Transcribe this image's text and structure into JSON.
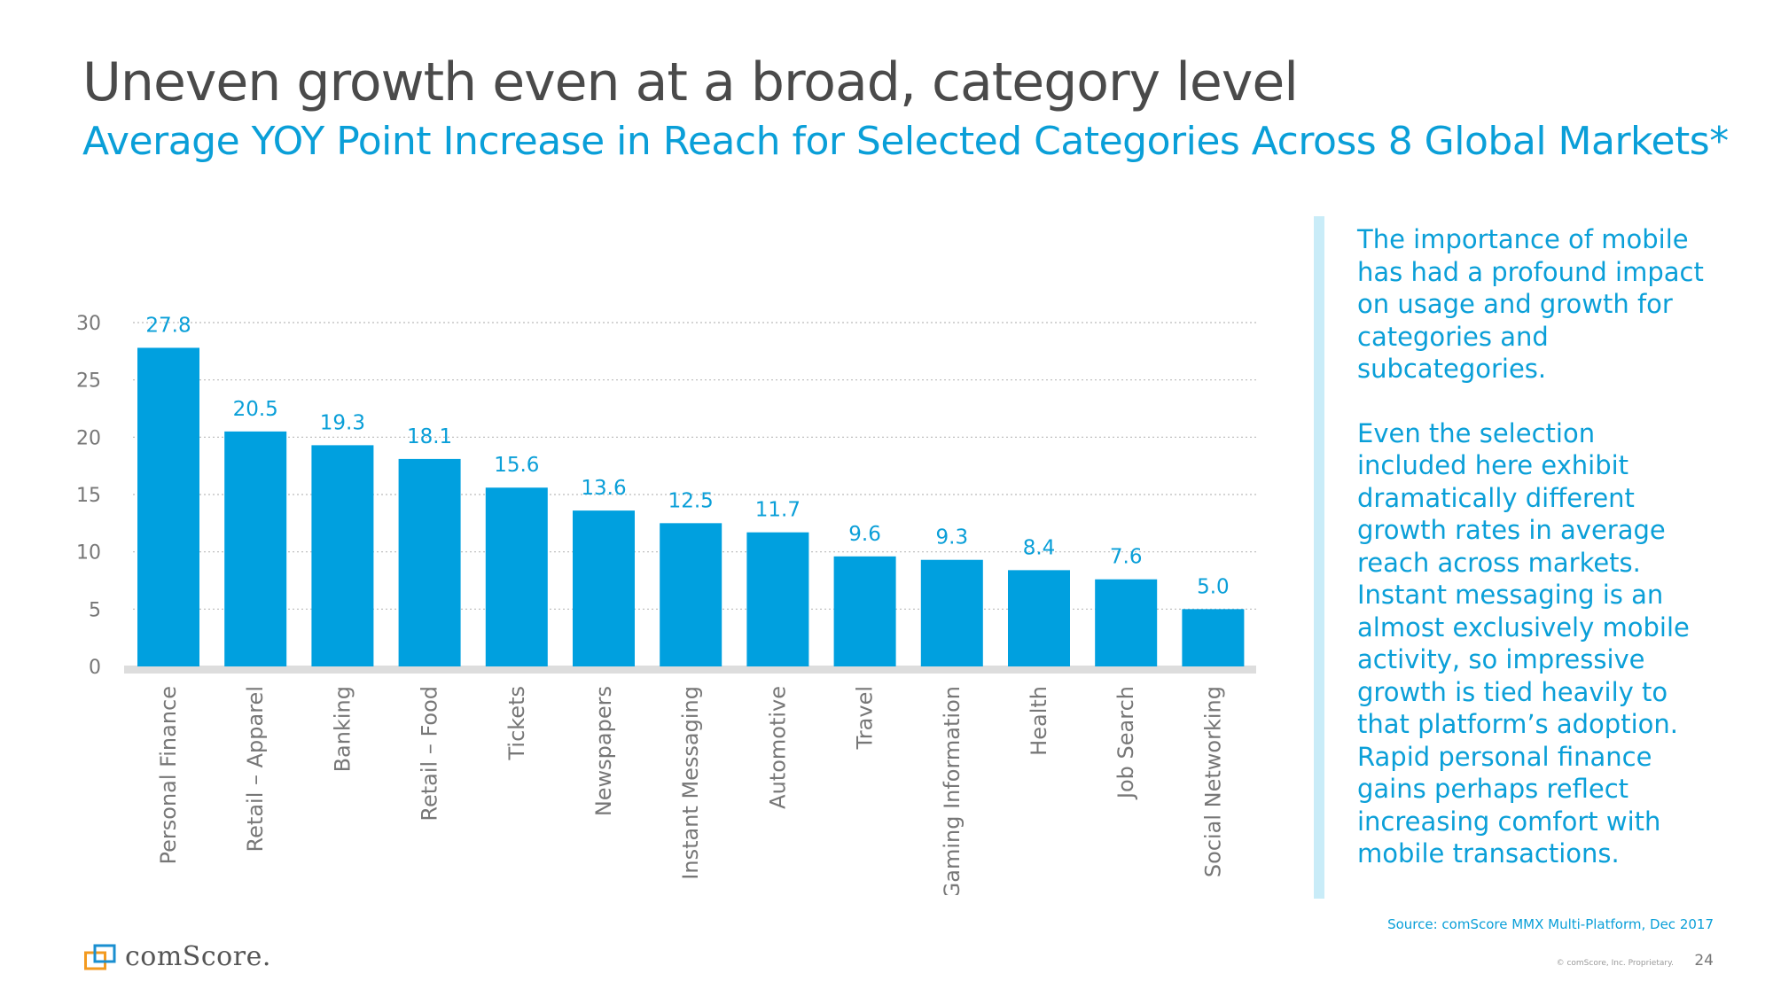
{
  "header": {
    "title": "Uneven growth even at a broad, category level",
    "subtitle": "Average YOY Point Increase in Reach for Selected Categories Across 8 Global Markets*"
  },
  "chart_data": {
    "type": "bar",
    "title": "Average YOY Point Increase in Reach for Selected Categories Across 8 Global Markets*",
    "xlabel": "",
    "ylabel": "",
    "ylim": [
      0,
      30
    ],
    "yticks": [
      0,
      5,
      10,
      15,
      20,
      25,
      30
    ],
    "grid": true,
    "categories": [
      "Personal Finance",
      "Retail – Apparel",
      "Banking",
      "Retail – Food",
      "Tickets",
      "Newspapers",
      "Instant Messaging",
      "Automotive",
      "Travel",
      "Gaming Information",
      "Health",
      "Job Search",
      "Social Networking"
    ],
    "values": [
      27.8,
      20.5,
      19.3,
      18.1,
      15.6,
      13.6,
      12.5,
      11.7,
      9.6,
      9.3,
      8.4,
      7.6,
      5.0
    ],
    "value_labels": [
      "27.8",
      "20.5",
      "19.3",
      "18.1",
      "15.6",
      "13.6",
      "12.5",
      "11.7",
      "9.6",
      "9.3",
      "8.4",
      "7.6",
      "5.0"
    ],
    "colors": {
      "bar": "#00a0df",
      "value_label": "#0a9fd8",
      "axis_text": "#777777",
      "grid": "#bbbbbb",
      "baseline": "#dddddd"
    }
  },
  "commentary": {
    "paragraph1": "The importance of mobile has had a profound impact on usage and growth for categories and subcategories.",
    "paragraph2": "Even the selection included here exhibit dramatically different growth rates in average reach across markets. Instant messaging is an almost exclusively mobile activity, so impressive growth is tied heavily to that platform’s adoption. Rapid personal finance gains perhaps reflect increasing comfort with mobile transactions."
  },
  "footer": {
    "source": "Source: comScore MMX Multi-Platform, Dec 2017",
    "copyright": "© comScore, Inc. Proprietary.",
    "page_number": "24",
    "logo_text": "comScore."
  },
  "colors": {
    "accent": "#0a9fd8",
    "title": "#4a4a4a",
    "sidebar_rule": "#c9ecf8",
    "logo_orange": "#f39a1f",
    "logo_blue": "#1a8fd0"
  }
}
